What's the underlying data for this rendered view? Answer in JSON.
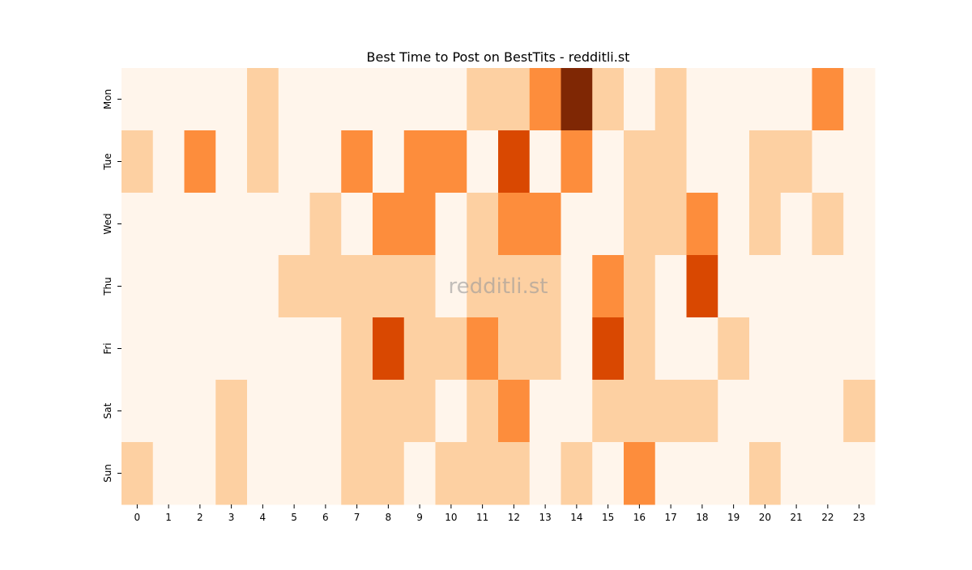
{
  "chart_data": {
    "type": "heatmap",
    "title": "Best Time to Post on BestTits - redditli.st",
    "watermark": "redditli.st",
    "xlabel": "",
    "ylabel": "",
    "x_categories": [
      "0",
      "1",
      "2",
      "3",
      "4",
      "5",
      "6",
      "7",
      "8",
      "9",
      "10",
      "11",
      "12",
      "13",
      "14",
      "15",
      "16",
      "17",
      "18",
      "19",
      "20",
      "21",
      "22",
      "23"
    ],
    "y_categories": [
      "Mon",
      "Tue",
      "Wed",
      "Thu",
      "Fri",
      "Sat",
      "Sun"
    ],
    "values": [
      [
        0,
        0,
        0,
        0,
        1,
        0,
        0,
        0,
        0,
        0,
        0,
        1,
        1,
        2,
        4,
        1,
        0,
        1,
        0,
        0,
        0,
        0,
        2,
        0
      ],
      [
        1,
        0,
        2,
        0,
        1,
        0,
        0,
        2,
        0,
        2,
        2,
        0,
        3,
        0,
        2,
        0,
        1,
        1,
        0,
        0,
        1,
        1,
        0,
        0
      ],
      [
        0,
        0,
        0,
        0,
        0,
        0,
        1,
        0,
        2,
        2,
        0,
        1,
        2,
        2,
        0,
        0,
        1,
        1,
        2,
        0,
        1,
        0,
        1,
        0
      ],
      [
        0,
        0,
        0,
        0,
        0,
        1,
        1,
        1,
        1,
        1,
        0,
        1,
        1,
        1,
        0,
        2,
        1,
        0,
        3,
        0,
        0,
        0,
        0,
        0
      ],
      [
        0,
        0,
        0,
        0,
        0,
        0,
        0,
        1,
        3,
        1,
        1,
        2,
        1,
        1,
        0,
        3,
        1,
        0,
        0,
        1,
        0,
        0,
        0,
        0
      ],
      [
        0,
        0,
        0,
        1,
        0,
        0,
        0,
        1,
        1,
        1,
        0,
        1,
        2,
        0,
        0,
        1,
        1,
        1,
        1,
        0,
        0,
        0,
        0,
        1
      ],
      [
        1,
        0,
        0,
        1,
        0,
        0,
        0,
        1,
        1,
        0,
        1,
        1,
        1,
        0,
        1,
        0,
        2,
        0,
        0,
        0,
        1,
        0,
        0,
        0
      ]
    ],
    "value_range": [
      0,
      4
    ],
    "colormap": [
      "#fff5eb",
      "#fdd0a2",
      "#fd8d3c",
      "#d94801",
      "#7f2704"
    ],
    "colorbar": false,
    "grid": false
  }
}
